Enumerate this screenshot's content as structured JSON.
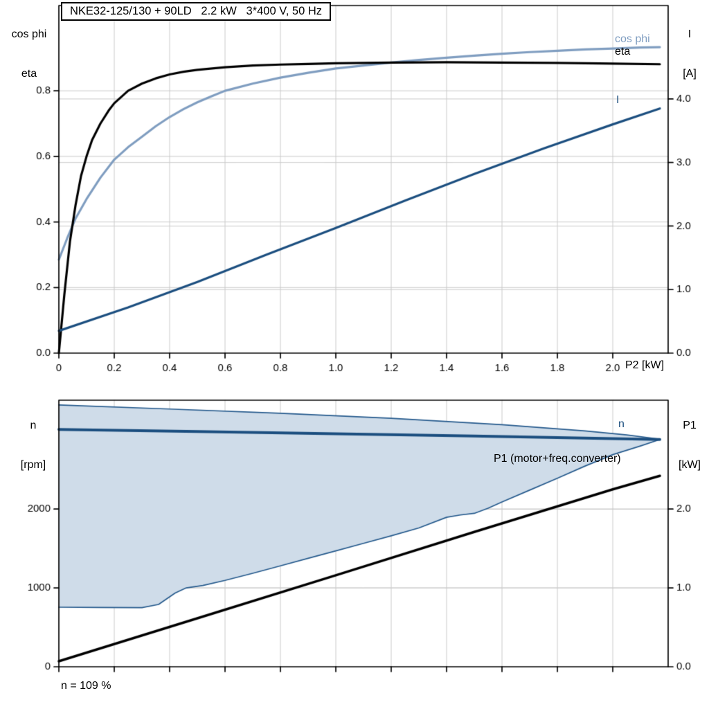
{
  "labels": {
    "title_box": "NKE32-125/130 + 90LD   2.2 kW   3*400 V, 50 Hz",
    "top_left_line1": "cos phi",
    "top_left_line2": "eta",
    "top_right_line1": "I",
    "top_right_line2": "[A]",
    "top_xunit": "P2 [kW]",
    "curve_cosphi": "cos phi",
    "curve_eta": "eta",
    "curve_I": "I",
    "bottom_left_line1": "n",
    "bottom_left_line2": "[rpm]",
    "bottom_right_line1": "P1",
    "bottom_right_line2": "[kW]",
    "curve_n": "n",
    "curve_P1": "P1 (motor+freq.converter)",
    "annotation": "n = 109 %"
  },
  "colors": {
    "cos_phi": "#7f9dc0",
    "eta": "#000000",
    "current": "#1b4e7f",
    "speed": "#1b4e7f",
    "p1": "#000000",
    "area_fill": "#cfdce9",
    "area_edge": "#24598c",
    "grid": "#c9c9c9",
    "frame": "#000000"
  },
  "chart_data": [
    {
      "type": "line",
      "title": "NKE32-125/130 + 90LD   2.2 kW   3*400 V, 50 Hz",
      "xlabel": "P2 [kW]",
      "ylabel_left": "cos phi / eta",
      "ylabel_right": "I [A]",
      "grid": true,
      "xlim": [
        0,
        2.2
      ],
      "xticks": [
        0,
        0.2,
        0.4,
        0.6,
        0.8,
        1.0,
        1.2,
        1.4,
        1.6,
        1.8,
        2.0
      ],
      "xtick_labels": [
        "0",
        "0.2",
        "0.4",
        "0.6",
        "0.8",
        "1.0",
        "1.2",
        "1.4",
        "1.6",
        "1.8",
        "2.0"
      ],
      "ylim_left": [
        0,
        1.06
      ],
      "yticks_left": [
        0,
        0.2,
        0.4,
        0.6,
        0.8
      ],
      "ytick_labels_left": [
        "0.0",
        "0.2",
        "0.4",
        "0.6",
        "0.8"
      ],
      "ylim_right": [
        0,
        5.47
      ],
      "yticks_right": [
        0,
        1,
        2,
        3,
        4
      ],
      "ytick_labels_right": [
        "0.0",
        "1.0",
        "2.0",
        "3.0",
        "4.0"
      ],
      "series": [
        {
          "name": "cos phi",
          "axis": "left",
          "color": "#7f9dc0",
          "width": 3.2,
          "points": [
            [
              0,
              0.285
            ],
            [
              0.03,
              0.35
            ],
            [
              0.06,
              0.41
            ],
            [
              0.1,
              0.47
            ],
            [
              0.15,
              0.535
            ],
            [
              0.2,
              0.59
            ],
            [
              0.25,
              0.628
            ],
            [
              0.3,
              0.66
            ],
            [
              0.35,
              0.692
            ],
            [
              0.4,
              0.72
            ],
            [
              0.45,
              0.744
            ],
            [
              0.5,
              0.765
            ],
            [
              0.55,
              0.783
            ],
            [
              0.6,
              0.8
            ],
            [
              0.7,
              0.822
            ],
            [
              0.8,
              0.84
            ],
            [
              0.9,
              0.855
            ],
            [
              1.0,
              0.868
            ],
            [
              1.1,
              0.877
            ],
            [
              1.2,
              0.886
            ],
            [
              1.3,
              0.894
            ],
            [
              1.4,
              0.901
            ],
            [
              1.5,
              0.907
            ],
            [
              1.6,
              0.913
            ],
            [
              1.7,
              0.918
            ],
            [
              1.8,
              0.922
            ],
            [
              1.9,
              0.926
            ],
            [
              2.0,
              0.929
            ],
            [
              2.1,
              0.932
            ],
            [
              2.17,
              0.933
            ]
          ]
        },
        {
          "name": "eta",
          "axis": "left",
          "color": "#000000",
          "width": 3.2,
          "points": [
            [
              0,
              0
            ],
            [
              0.02,
              0.18
            ],
            [
              0.04,
              0.34
            ],
            [
              0.06,
              0.45
            ],
            [
              0.08,
              0.54
            ],
            [
              0.1,
              0.6
            ],
            [
              0.12,
              0.65
            ],
            [
              0.15,
              0.7
            ],
            [
              0.18,
              0.74
            ],
            [
              0.2,
              0.762
            ],
            [
              0.25,
              0.8
            ],
            [
              0.3,
              0.822
            ],
            [
              0.35,
              0.838
            ],
            [
              0.4,
              0.85
            ],
            [
              0.45,
              0.858
            ],
            [
              0.5,
              0.864
            ],
            [
              0.6,
              0.872
            ],
            [
              0.7,
              0.877
            ],
            [
              0.8,
              0.88
            ],
            [
              0.9,
              0.882
            ],
            [
              1.0,
              0.884
            ],
            [
              1.2,
              0.886
            ],
            [
              1.4,
              0.887
            ],
            [
              1.6,
              0.886
            ],
            [
              1.8,
              0.885
            ],
            [
              2.0,
              0.883
            ],
            [
              2.17,
              0.881
            ]
          ]
        },
        {
          "name": "I",
          "axis": "right",
          "color": "#1b4e7f",
          "width": 3.2,
          "points": [
            [
              0,
              0.35
            ],
            [
              0.25,
              0.72
            ],
            [
              0.5,
              1.12
            ],
            [
              0.75,
              1.55
            ],
            [
              1.0,
              1.97
            ],
            [
              1.25,
              2.4
            ],
            [
              1.5,
              2.82
            ],
            [
              1.75,
              3.22
            ],
            [
              2.0,
              3.6
            ],
            [
              2.17,
              3.85
            ]
          ]
        }
      ]
    },
    {
      "type": "line+area",
      "title": "",
      "xlabel": "",
      "ylabel_left": "n [rpm]",
      "ylabel_right": "P1 [kW]",
      "grid": true,
      "annotation": "n = 109 %",
      "xlim": [
        0,
        2.2
      ],
      "xticks": [
        0,
        0.2,
        0.4,
        0.6,
        0.8,
        1.0,
        1.2,
        1.4,
        1.6,
        1.8,
        2.0
      ],
      "ylim_left": [
        0,
        3380
      ],
      "yticks_left": [
        0,
        1000,
        2000
      ],
      "ytick_labels_left": [
        "0",
        "1000",
        "2000"
      ],
      "ylim_right": [
        0,
        3.38
      ],
      "yticks_right": [
        0,
        1,
        2
      ],
      "ytick_labels_right": [
        "0.0",
        "1.0",
        "2.0"
      ],
      "area": {
        "name": "speed-operating-range",
        "axis": "left",
        "fill": "#cfdce9",
        "edge": "#24598c",
        "edge_width": 1.7,
        "upper": [
          [
            0,
            3320
          ],
          [
            0.4,
            3268
          ],
          [
            0.8,
            3215
          ],
          [
            1.2,
            3150
          ],
          [
            1.6,
            3070
          ],
          [
            1.9,
            2990
          ],
          [
            2.05,
            2940
          ],
          [
            2.17,
            2886
          ]
        ],
        "lower": [
          [
            0,
            755
          ],
          [
            0.15,
            752
          ],
          [
            0.3,
            750
          ],
          [
            0.36,
            790
          ],
          [
            0.42,
            935
          ],
          [
            0.46,
            1000
          ],
          [
            0.52,
            1030
          ],
          [
            0.6,
            1095
          ],
          [
            0.7,
            1185
          ],
          [
            0.8,
            1280
          ],
          [
            0.9,
            1375
          ],
          [
            1.0,
            1470
          ],
          [
            1.1,
            1565
          ],
          [
            1.2,
            1660
          ],
          [
            1.3,
            1760
          ],
          [
            1.4,
            1895
          ],
          [
            1.45,
            1925
          ],
          [
            1.5,
            1945
          ],
          [
            1.55,
            2010
          ],
          [
            1.6,
            2090
          ],
          [
            1.7,
            2240
          ],
          [
            1.8,
            2390
          ],
          [
            1.9,
            2545
          ],
          [
            2.0,
            2690
          ],
          [
            2.1,
            2800
          ],
          [
            2.17,
            2882
          ]
        ]
      },
      "series": [
        {
          "name": "n",
          "axis": "left",
          "color": "#1b4e7f",
          "width": 4,
          "points": [
            [
              0,
              3010
            ],
            [
              0.5,
              2983
            ],
            [
              1.0,
              2955
            ],
            [
              1.5,
              2925
            ],
            [
              2.0,
              2893
            ],
            [
              2.17,
              2882
            ]
          ]
        },
        {
          "name": "P1 (motor+freq.converter)",
          "axis": "right",
          "color": "#000000",
          "width": 3.6,
          "points": [
            [
              0,
              0.07
            ],
            [
              0.5,
              0.615
            ],
            [
              1.0,
              1.16
            ],
            [
              1.5,
              1.71
            ],
            [
              2.0,
              2.25
            ],
            [
              2.17,
              2.42
            ]
          ]
        }
      ]
    }
  ]
}
